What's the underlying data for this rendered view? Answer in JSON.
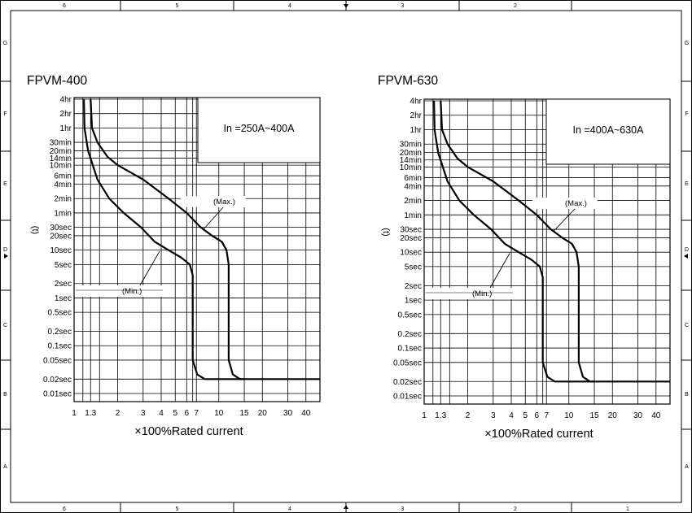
{
  "frame": {
    "top_numbers": [
      "6",
      "5",
      "4",
      "3",
      "2"
    ],
    "bottom_numbers": [
      "6",
      "5",
      "4",
      "3",
      "2",
      "1"
    ],
    "side_letters": [
      "G",
      "F",
      "E",
      "D",
      "C",
      "B",
      "A"
    ]
  },
  "chart_data": [
    {
      "type": "line",
      "title": "FPVM-400",
      "xlabel": "×100%Rated current",
      "ylabel": "(t)",
      "x_scale": "log",
      "xlim": [
        1,
        50
      ],
      "x_ticks": [
        1,
        1.3,
        2,
        3,
        4,
        5,
        6,
        7,
        10,
        15,
        20,
        30,
        40
      ],
      "x_tick_labels": [
        "1",
        "1.3",
        "2",
        "3",
        "4",
        "5",
        "6",
        "7",
        "10",
        "15",
        "20",
        "30",
        "40"
      ],
      "y_scale": "log",
      "y_unit": "seconds",
      "y_ticks": [
        14400,
        7200,
        3600,
        1800,
        1200,
        840,
        600,
        360,
        240,
        120,
        60,
        30,
        20,
        10,
        5,
        2,
        1,
        0.5,
        0.2,
        0.1,
        0.05,
        0.02,
        0.01
      ],
      "y_tick_labels": [
        "4hr",
        "2hr",
        "1hr",
        "30min",
        "20min",
        "14min",
        "10min",
        "6min",
        "4min",
        "2min",
        "1min",
        "30sec",
        "20sec",
        "10sec",
        "5sec",
        "2sec",
        "1sec",
        "0.5sec",
        "0.2sec",
        "0.1sec",
        "0.05sec",
        "0.02sec",
        "0.01sec"
      ],
      "rating_label": "In =250A~400A",
      "grid": true,
      "series": [
        {
          "name": "(Max.)",
          "points": [
            [
              1.3,
              14400
            ],
            [
              1.33,
              3600
            ],
            [
              1.45,
              1800
            ],
            [
              1.7,
              900
            ],
            [
              2.0,
              600
            ],
            [
              3.0,
              300
            ],
            [
              4.5,
              120
            ],
            [
              6.0,
              60
            ],
            [
              7.5,
              30
            ],
            [
              9.0,
              20
            ],
            [
              10.5,
              15
            ],
            [
              11.3,
              10
            ],
            [
              11.7,
              5
            ],
            [
              11.7,
              0.05
            ],
            [
              12.5,
              0.025
            ],
            [
              14.0,
              0.02
            ],
            [
              50,
              0.02
            ]
          ]
        },
        {
          "name": "(Min.)",
          "points": [
            [
              1.17,
              14400
            ],
            [
              1.18,
              3600
            ],
            [
              1.25,
              1200
            ],
            [
              1.45,
              300
            ],
            [
              1.75,
              120
            ],
            [
              2.2,
              60
            ],
            [
              2.9,
              30
            ],
            [
              3.6,
              15
            ],
            [
              4.5,
              10
            ],
            [
              5.5,
              7
            ],
            [
              6.3,
              5
            ],
            [
              6.6,
              3
            ],
            [
              6.6,
              0.05
            ],
            [
              7.1,
              0.025
            ],
            [
              8.0,
              0.02
            ],
            [
              15,
              0.02
            ]
          ]
        }
      ],
      "annotations": [
        "(Max.)",
        "(Min.)"
      ]
    },
    {
      "type": "line",
      "title": "FPVM-630",
      "xlabel": "×100%Rated current",
      "ylabel": "(t)",
      "x_scale": "log",
      "xlim": [
        1,
        50
      ],
      "x_ticks": [
        1,
        1.3,
        2,
        3,
        4,
        5,
        6,
        7,
        10,
        15,
        20,
        30,
        40
      ],
      "x_tick_labels": [
        "1",
        "1.3",
        "2",
        "3",
        "4",
        "5",
        "6",
        "7",
        "10",
        "15",
        "20",
        "30",
        "40"
      ],
      "y_scale": "log",
      "y_unit": "seconds",
      "y_ticks": [
        14400,
        7200,
        3600,
        1800,
        1200,
        840,
        600,
        360,
        240,
        120,
        60,
        30,
        20,
        10,
        5,
        2,
        1,
        0.5,
        0.2,
        0.1,
        0.05,
        0.02,
        0.01
      ],
      "y_tick_labels": [
        "4hr",
        "2hr",
        "1hr",
        "30min",
        "20min",
        "14min",
        "10min",
        "6min",
        "4min",
        "2min",
        "1min",
        "30sec",
        "20sec",
        "10sec",
        "5sec",
        "2sec",
        "1sec",
        "0.5sec",
        "0.2sec",
        "0.1sec",
        "0.05sec",
        "0.02sec",
        "0.01sec"
      ],
      "rating_label": "In =400A~630A",
      "grid": true,
      "series": [
        {
          "name": "(Max.)",
          "points": [
            [
              1.3,
              14400
            ],
            [
              1.33,
              3600
            ],
            [
              1.45,
              1800
            ],
            [
              1.7,
              900
            ],
            [
              2.0,
              600
            ],
            [
              3.0,
              300
            ],
            [
              4.5,
              120
            ],
            [
              6.0,
              60
            ],
            [
              7.5,
              30
            ],
            [
              9.0,
              20
            ],
            [
              10.5,
              15
            ],
            [
              11.3,
              10
            ],
            [
              11.7,
              5
            ],
            [
              11.7,
              0.05
            ],
            [
              12.5,
              0.025
            ],
            [
              14.0,
              0.02
            ],
            [
              50,
              0.02
            ]
          ]
        },
        {
          "name": "(Min.)",
          "points": [
            [
              1.17,
              14400
            ],
            [
              1.18,
              3600
            ],
            [
              1.25,
              1200
            ],
            [
              1.45,
              300
            ],
            [
              1.75,
              120
            ],
            [
              2.2,
              60
            ],
            [
              2.9,
              30
            ],
            [
              3.6,
              15
            ],
            [
              4.5,
              10
            ],
            [
              5.5,
              7
            ],
            [
              6.3,
              5
            ],
            [
              6.6,
              3
            ],
            [
              6.6,
              0.05
            ],
            [
              7.1,
              0.025
            ],
            [
              8.0,
              0.02
            ],
            [
              15,
              0.02
            ]
          ]
        }
      ],
      "annotations": [
        "(Max.)",
        "(Min.)"
      ]
    }
  ]
}
